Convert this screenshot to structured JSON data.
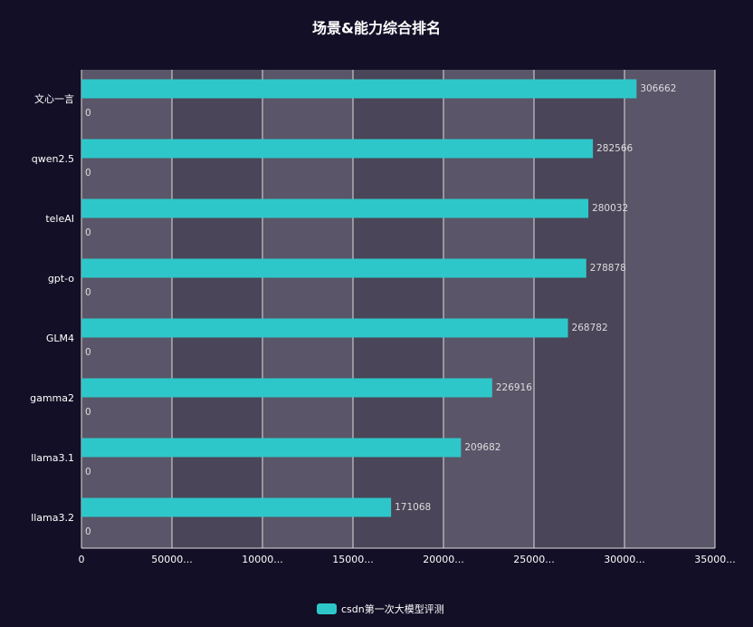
{
  "chart_data": {
    "type": "hbar",
    "title": "场景&能力综合排名",
    "categories": [
      "文心一言",
      "qwen2.5",
      "teleAI",
      "gpt-o",
      "GLM4",
      "gamma2",
      "llama3.1",
      "llama3.2"
    ],
    "series": [
      {
        "name": "csdn第一次大模型评测",
        "color": "#2ec7c9",
        "values": [
          306662,
          282566,
          280032,
          278878,
          268782,
          226916,
          209682,
          171068
        ]
      },
      {
        "color": "#b6a2de",
        "values": [
          0,
          0,
          0,
          0,
          0,
          0,
          0,
          0
        ]
      }
    ],
    "xlim": [
      0,
      350000
    ],
    "xticks": [
      0,
      {
        "value": 50000,
        "label": "50000..."
      },
      {
        "value": 100000,
        "label": "10000..."
      },
      {
        "value": 150000,
        "label": "15000..."
      },
      {
        "value": 200000,
        "label": "20000..."
      },
      {
        "value": 250000,
        "label": "25000..."
      },
      {
        "value": 300000,
        "label": "30000..."
      },
      {
        "value": 350000,
        "label": "35000..."
      }
    ],
    "grid": true,
    "legend": "bottom"
  }
}
